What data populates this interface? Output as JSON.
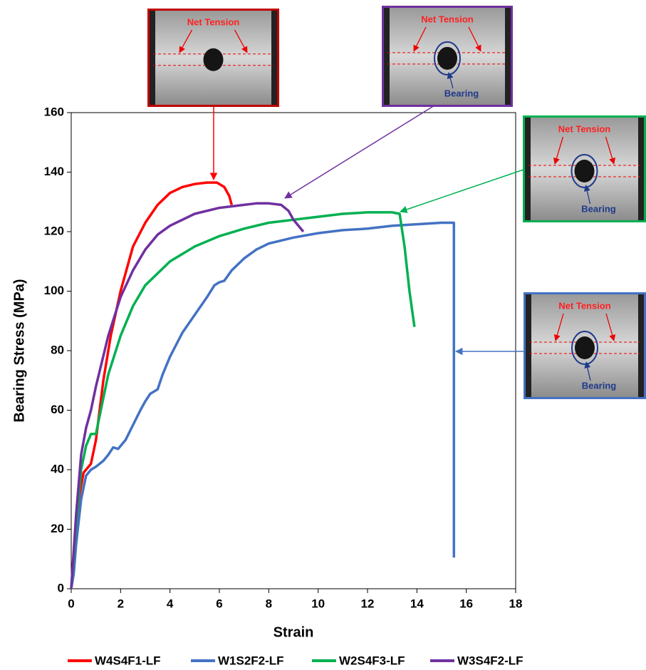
{
  "chart_data": {
    "type": "line",
    "x_label": "Strain",
    "y_label": "Bearing Stress (MPa)",
    "xlim": [
      0,
      18
    ],
    "xticks": [
      0,
      2,
      4,
      6,
      8,
      10,
      12,
      14,
      16,
      18
    ],
    "ylim": [
      0,
      160
    ],
    "yticks": [
      0,
      20,
      40,
      60,
      80,
      100,
      120,
      140,
      160
    ],
    "grid": false,
    "legend": "bottom",
    "series": [
      {
        "name": "W4S4F1-LF",
        "color": "#ff0000",
        "x": [
          0,
          0.1,
          0.3,
          0.5,
          0.8,
          1,
          1.3,
          1.6,
          2,
          2.5,
          3,
          3.5,
          4,
          4.5,
          5,
          5.5,
          5.9,
          6.2,
          6.4,
          6.5
        ],
        "values": [
          0,
          8,
          30,
          39,
          42,
          50,
          70,
          85,
          100,
          115,
          123,
          129,
          133,
          135,
          136,
          136.5,
          136.5,
          135,
          132,
          129
        ]
      },
      {
        "name": "W1S2F2-LF",
        "color": "#4472c4",
        "x": [
          0,
          0.1,
          0.2,
          0.4,
          0.6,
          0.8,
          1,
          1.3,
          1.5,
          1.7,
          1.9,
          2,
          2.2,
          2.5,
          2.8,
          3,
          3.2,
          3.5,
          3.7,
          4,
          4.5,
          5,
          5.5,
          5.8,
          6,
          6.2,
          6.5,
          7,
          7.5,
          8,
          9,
          10,
          11,
          12,
          13,
          14,
          15,
          15.5,
          15.5
        ],
        "values": [
          0,
          5,
          15,
          30,
          38,
          40,
          41,
          43,
          45,
          47.5,
          47,
          48,
          50,
          55,
          60,
          63,
          65.5,
          67,
          72,
          78,
          86,
          92,
          98,
          102,
          103,
          103.5,
          107,
          111,
          114,
          116,
          118,
          119.5,
          120.5,
          121,
          122,
          122.5,
          123,
          123,
          10.5
        ]
      },
      {
        "name": "W2S4F3-LF",
        "color": "#00b050",
        "x": [
          0,
          0.2,
          0.4,
          0.6,
          0.8,
          1,
          1.1,
          1.5,
          2,
          2.5,
          3,
          4,
          5,
          6,
          7,
          8,
          9,
          10,
          11,
          12,
          13,
          13.3,
          13.5,
          13.7,
          13.9
        ],
        "values": [
          0,
          22,
          40,
          48,
          52,
          52,
          56,
          72,
          85,
          95,
          102,
          110,
          115,
          118.5,
          121,
          123,
          124,
          125,
          126,
          126.5,
          126.5,
          126,
          115,
          100,
          88
        ]
      },
      {
        "name": "W3S4F2-LF",
        "color": "#7030a0",
        "x": [
          0,
          0.2,
          0.4,
          0.6,
          0.8,
          1,
          1.5,
          2,
          2.5,
          3,
          3.5,
          4,
          5,
          6,
          7,
          7.5,
          8,
          8.5,
          8.8,
          9,
          9.4
        ],
        "values": [
          0,
          25,
          45,
          54,
          60,
          68,
          85,
          98,
          107,
          114,
          119,
          122,
          126,
          128,
          129,
          129.5,
          129.5,
          129,
          127,
          124,
          120
        ]
      }
    ],
    "insets": [
      {
        "color": "#c00000",
        "labels": [
          "Net Tension"
        ]
      },
      {
        "color": "#7030a0",
        "labels": [
          "Net Tension",
          "Bearing"
        ]
      },
      {
        "color": "#00b050",
        "labels": [
          "Net Tension",
          "Bearing"
        ]
      },
      {
        "color": "#4472c4",
        "labels": [
          "Net Tension",
          "Bearing"
        ]
      }
    ]
  }
}
